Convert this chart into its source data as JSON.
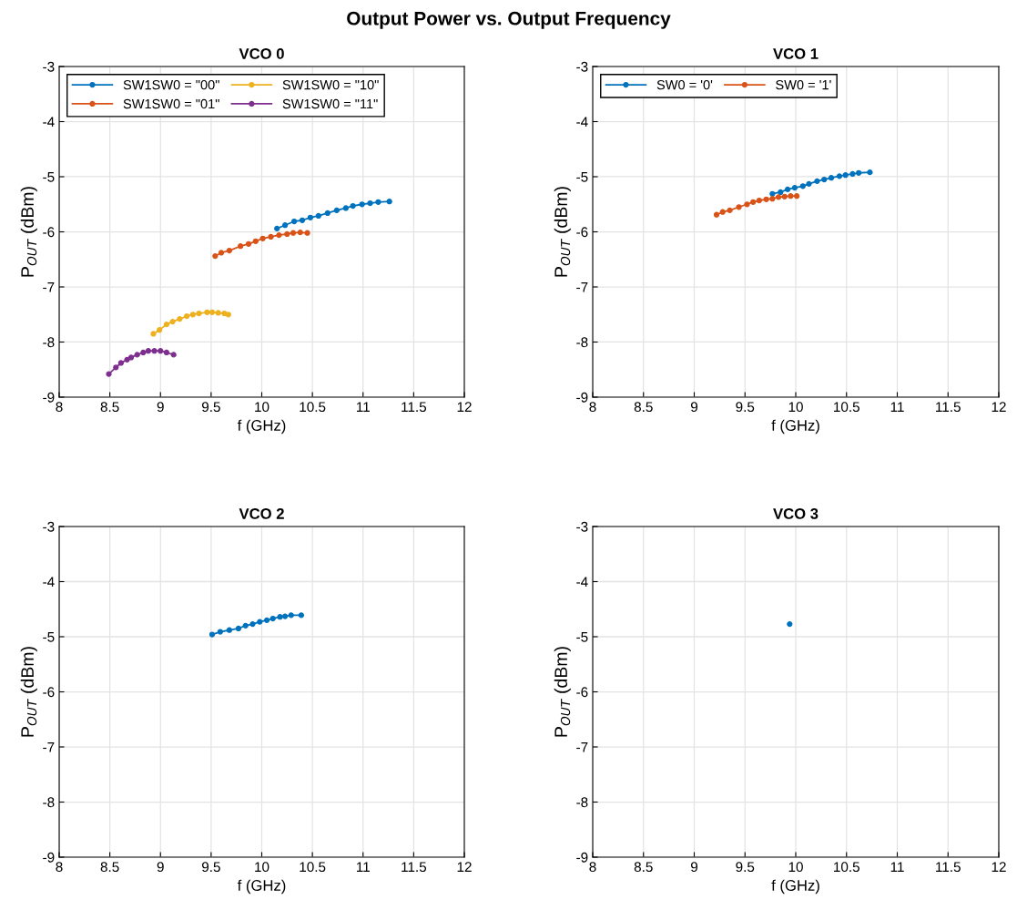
{
  "chart_data": [
    {
      "type": "line",
      "title": "VCO 0",
      "xlabel": "f (GHz)",
      "ylabel": "P$_{OUT}$ (dBm)",
      "annotations": [
        "Output Power vs. Output Frequency"
      ],
      "xlim": [
        8,
        12
      ],
      "xticks": [
        8,
        8.5,
        9,
        9.5,
        10,
        10.5,
        11,
        11.5,
        12
      ],
      "ylim": [
        -9,
        -3
      ],
      "yticks": [
        -9,
        -8,
        -7,
        -6,
        -5,
        -4,
        -3
      ],
      "grid": true,
      "legend": "top left",
      "marker": "circle",
      "line_style": "solid",
      "series": [
        {
          "name": "SW1SW0 = \"00\"",
          "color": "#0072bd",
          "x": [
            10.15,
            10.23,
            10.32,
            10.4,
            10.48,
            10.56,
            10.65,
            10.74,
            10.83,
            10.9,
            10.99,
            11.07,
            11.15,
            11.26
          ],
          "values": [
            -5.94,
            -5.88,
            -5.81,
            -5.79,
            -5.74,
            -5.71,
            -5.66,
            -5.61,
            -5.57,
            -5.53,
            -5.5,
            -5.48,
            -5.46,
            -5.45
          ]
        },
        {
          "name": "SW1SW0 = \"01\"",
          "color": "#d95319",
          "x": [
            9.54,
            9.6,
            9.68,
            9.79,
            9.87,
            9.94,
            10.01,
            10.09,
            10.17,
            10.25,
            10.31,
            10.38,
            10.45
          ],
          "values": [
            -6.44,
            -6.38,
            -6.34,
            -6.26,
            -6.22,
            -6.17,
            -6.12,
            -6.09,
            -6.06,
            -6.04,
            -6.02,
            -6.01,
            -6.02
          ]
        },
        {
          "name": "SW1SW0 = \"10\"",
          "color": "#edb120",
          "x": [
            8.93,
            8.99,
            9.06,
            9.12,
            9.19,
            9.26,
            9.32,
            9.38,
            9.46,
            9.51,
            9.57,
            9.63,
            9.67
          ],
          "values": [
            -7.85,
            -7.78,
            -7.68,
            -7.63,
            -7.58,
            -7.53,
            -7.5,
            -7.48,
            -7.46,
            -7.46,
            -7.47,
            -7.48,
            -7.5
          ]
        },
        {
          "name": "SW1SW0 = \"11\"",
          "color": "#7e2f8e",
          "x": [
            8.49,
            8.56,
            8.61,
            8.67,
            8.71,
            8.77,
            8.83,
            8.88,
            8.94,
            9.0,
            9.06,
            9.13
          ],
          "values": [
            -8.58,
            -8.46,
            -8.38,
            -8.32,
            -8.28,
            -8.23,
            -8.19,
            -8.16,
            -8.16,
            -8.16,
            -8.19,
            -8.23
          ]
        }
      ]
    },
    {
      "type": "line",
      "title": "VCO 1",
      "xlabel": "f (GHz)",
      "ylabel": "P$_{OUT}$ (dBm)",
      "xlim": [
        8,
        12
      ],
      "xticks": [
        8,
        8.5,
        9,
        9.5,
        10,
        10.5,
        11,
        11.5,
        12
      ],
      "ylim": [
        -9,
        -3
      ],
      "yticks": [
        -9,
        -8,
        -7,
        -6,
        -5,
        -4,
        -3
      ],
      "grid": true,
      "legend": "top left",
      "marker": "circle",
      "line_style": "solid",
      "series": [
        {
          "name": "SW0 = '0'",
          "color": "#0072bd",
          "x": [
            9.77,
            9.85,
            9.92,
            9.99,
            10.07,
            10.13,
            10.21,
            10.28,
            10.35,
            10.43,
            10.49,
            10.56,
            10.62,
            10.73
          ],
          "values": [
            -5.31,
            -5.28,
            -5.23,
            -5.2,
            -5.17,
            -5.13,
            -5.08,
            -5.05,
            -5.02,
            -4.99,
            -4.97,
            -4.95,
            -4.93,
            -4.92
          ]
        },
        {
          "name": "SW0 = '1'",
          "color": "#d95319",
          "x": [
            9.22,
            9.28,
            9.35,
            9.44,
            9.52,
            9.58,
            9.64,
            9.71,
            9.77,
            9.83,
            9.89,
            9.95,
            10.01
          ],
          "values": [
            -5.69,
            -5.64,
            -5.61,
            -5.55,
            -5.5,
            -5.46,
            -5.43,
            -5.41,
            -5.4,
            -5.37,
            -5.36,
            -5.35,
            -5.35
          ]
        }
      ]
    },
    {
      "type": "line",
      "title": "VCO 2",
      "xlabel": "f (GHz)",
      "ylabel": "P$_{OUT}$ (dBm)",
      "xlim": [
        8,
        12
      ],
      "xticks": [
        8,
        8.5,
        9,
        9.5,
        10,
        10.5,
        11,
        11.5,
        12
      ],
      "ylim": [
        -9,
        -3
      ],
      "yticks": [
        -9,
        -8,
        -7,
        -6,
        -5,
        -4,
        -3
      ],
      "grid": true,
      "marker": "circle",
      "line_style": "solid",
      "series": [
        {
          "color": "#0072bd",
          "x": [
            9.51,
            9.59,
            9.68,
            9.77,
            9.84,
            9.91,
            9.98,
            10.05,
            10.11,
            10.18,
            10.23,
            10.29,
            10.39
          ],
          "values": [
            -4.96,
            -4.91,
            -4.88,
            -4.85,
            -4.8,
            -4.77,
            -4.73,
            -4.7,
            -4.67,
            -4.64,
            -4.63,
            -4.61,
            -4.61
          ]
        }
      ]
    },
    {
      "type": "line",
      "title": "VCO 3",
      "xlabel": "f (GHz)",
      "ylabel": "P$_{OUT}$ (dBm)",
      "xlim": [
        8,
        12
      ],
      "xticks": [
        8,
        8.5,
        9,
        9.5,
        10,
        10.5,
        11,
        11.5,
        12
      ],
      "ylim": [
        -9,
        -3
      ],
      "yticks": [
        -9,
        -8,
        -7,
        -6,
        -5,
        -4,
        -3
      ],
      "grid": true,
      "marker": "circle",
      "line_style": "solid",
      "series": [
        {
          "color": "#0072bd",
          "x": [
            9.94
          ],
          "values": [
            -4.77
          ]
        }
      ]
    }
  ]
}
